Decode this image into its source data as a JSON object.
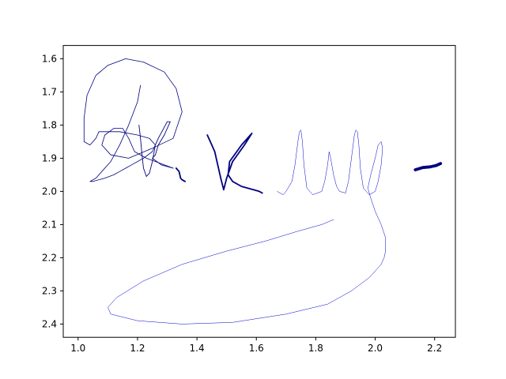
{
  "chart_data": {
    "type": "line",
    "title": "",
    "xlabel": "",
    "ylabel": "",
    "xlim": [
      0.95,
      2.27
    ],
    "ylim": [
      2.44,
      1.56
    ],
    "y_inverted": true,
    "grid": false,
    "legend": "none",
    "x_ticks": [
      1.0,
      1.2,
      1.4,
      1.6,
      1.8,
      2.0,
      2.2
    ],
    "x_tick_labels": [
      "1.0",
      "1.2",
      "1.4",
      "1.6",
      "1.8",
      "2.0",
      "2.2"
    ],
    "y_ticks": [
      1.6,
      1.7,
      1.8,
      1.9,
      2.0,
      2.1,
      2.2,
      2.3,
      2.4
    ],
    "y_tick_labels": [
      "1.6",
      "1.7",
      "1.8",
      "1.9",
      "2.0",
      "2.1",
      "2.2",
      "2.3",
      "2.4"
    ],
    "series": [
      {
        "color": "#000080",
        "width": 0.8,
        "x": [
          1.21,
          1.2,
          1.17,
          1.14,
          1.11,
          1.08,
          1.06,
          1.04,
          1.05,
          1.09,
          1.12,
          1.14,
          1.16,
          1.18,
          1.22,
          1.25,
          1.26,
          1.24,
          1.2,
          1.14,
          1.07,
          1.06,
          1.04,
          1.02,
          1.02,
          1.03,
          1.06,
          1.1,
          1.16,
          1.22,
          1.29,
          1.33,
          1.35,
          1.32,
          1.25,
          1.17,
          1.11,
          1.08,
          1.09,
          1.12,
          1.15,
          1.17,
          1.19,
          1.23,
          1.29,
          1.32
        ],
        "y": [
          1.68,
          1.73,
          1.8,
          1.86,
          1.91,
          1.94,
          1.96,
          1.97,
          1.97,
          1.96,
          1.95,
          1.94,
          1.93,
          1.92,
          1.9,
          1.88,
          1.86,
          1.84,
          1.83,
          1.82,
          1.82,
          1.84,
          1.86,
          1.85,
          1.78,
          1.71,
          1.65,
          1.62,
          1.6,
          1.61,
          1.64,
          1.69,
          1.76,
          1.84,
          1.87,
          1.9,
          1.89,
          1.86,
          1.83,
          1.81,
          1.81,
          1.84,
          1.88,
          1.9,
          1.92,
          1.93
        ]
      },
      {
        "color": "#000080",
        "width": 0.9,
        "x": [
          1.205,
          1.21,
          1.215,
          1.22,
          1.23,
          1.24,
          1.25,
          1.26,
          1.27,
          1.3,
          1.31,
          1.29,
          1.27,
          1.26,
          1.25,
          1.28,
          1.32
        ],
        "y": [
          1.8,
          1.84,
          1.89,
          1.93,
          1.955,
          1.945,
          1.91,
          1.86,
          1.84,
          1.79,
          1.79,
          1.83,
          1.86,
          1.89,
          1.9,
          1.92,
          1.93
        ]
      },
      {
        "color": "#000080",
        "width": 1.8,
        "x": [
          1.33,
          1.34,
          1.345,
          1.35,
          1.36
        ],
        "y": [
          1.93,
          1.94,
          1.96,
          1.965,
          1.97
        ]
      },
      {
        "color": "#000080",
        "width": 1.8,
        "x": [
          1.44,
          1.435,
          1.445,
          1.46,
          1.47,
          1.48,
          1.49,
          1.5,
          1.52,
          1.56,
          1.585,
          1.55,
          1.51,
          1.505,
          1.52,
          1.55,
          1.59,
          1.61,
          1.62
        ],
        "y": [
          1.84,
          1.83,
          1.85,
          1.88,
          1.92,
          1.96,
          1.995,
          1.96,
          1.91,
          1.86,
          1.825,
          1.86,
          1.91,
          1.95,
          1.97,
          1.985,
          1.995,
          2.0,
          2.005
        ]
      },
      {
        "color": "#0000cc",
        "width": 0.5,
        "x": [
          1.67,
          1.69,
          1.7,
          1.72,
          1.73,
          1.74,
          1.745,
          1.75,
          1.755,
          1.76,
          1.77,
          1.79,
          1.82,
          1.83,
          1.84,
          1.845,
          1.85,
          1.86,
          1.87,
          1.88,
          1.9,
          1.91,
          1.92,
          1.93,
          1.935,
          1.94,
          1.945,
          1.95,
          1.96,
          1.98,
          2.0,
          2.01,
          2.02,
          2.025,
          2.02,
          2.01,
          2.0,
          1.985,
          1.975,
          1.985,
          2.0,
          2.02,
          2.035,
          2.035,
          2.03,
          2.02,
          1.98,
          1.92,
          1.84,
          1.7,
          1.52,
          1.35,
          1.2,
          1.11,
          1.1,
          1.13,
          1.22,
          1.35,
          1.5,
          1.63,
          1.74,
          1.82,
          1.86
        ],
        "y": [
          2.0,
          2.01,
          2.0,
          1.97,
          1.92,
          1.85,
          1.82,
          1.815,
          1.85,
          1.92,
          1.99,
          2.01,
          2.0,
          1.97,
          1.92,
          1.88,
          1.9,
          1.95,
          1.985,
          2.0,
          2.005,
          1.97,
          1.9,
          1.83,
          1.815,
          1.82,
          1.86,
          1.93,
          1.99,
          2.01,
          2.0,
          1.97,
          1.92,
          1.87,
          1.85,
          1.86,
          1.9,
          1.95,
          1.99,
          2.02,
          2.06,
          2.1,
          2.14,
          2.18,
          2.2,
          2.22,
          2.26,
          2.3,
          2.34,
          2.37,
          2.395,
          2.4,
          2.39,
          2.37,
          2.35,
          2.32,
          2.27,
          2.22,
          2.18,
          2.15,
          2.12,
          2.1,
          2.085
        ]
      },
      {
        "color": "#000080",
        "width": 3.8,
        "x": [
          2.135,
          2.16,
          2.185,
          2.205,
          2.22
        ],
        "y": [
          1.935,
          1.928,
          1.926,
          1.922,
          1.916
        ]
      }
    ]
  }
}
